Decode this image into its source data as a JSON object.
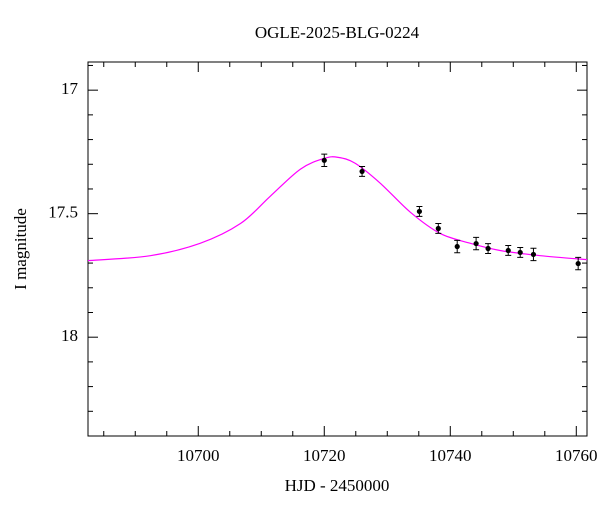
{
  "chart_data": {
    "type": "scatter",
    "title": "OGLE-2025-BLG-0224",
    "x_label": "HJD - 2450000",
    "y_label": "I magnitude",
    "xlim": [
      10682.5,
      10761.7
    ],
    "ylim": [
      18.4,
      16.886
    ],
    "xticks": [
      10700,
      10720,
      10740,
      10760
    ],
    "xminorticks": [
      10685,
      10690,
      10695,
      10705,
      10710,
      10715,
      10725,
      10730,
      10735,
      10745,
      10750,
      10755
    ],
    "yticks": [
      17,
      17.5,
      18
    ],
    "yminorticks": [
      16.9,
      17.1,
      17.2,
      17.3,
      17.4,
      17.6,
      17.7,
      17.8,
      17.9,
      18.1,
      18.2,
      18.3
    ],
    "series": [
      {
        "color": "#ff00ff",
        "x": [
          10682.5,
          10692.4,
          10700.3,
          10706.7,
          10711.4,
          10716.2,
          10720,
          10722.2,
          10724.9,
          10728.9,
          10733.7,
          10738.4,
          10743.2,
          10747.9,
          10754.3,
          10761.7
        ],
        "values": [
          17.69,
          17.67,
          17.62,
          17.54,
          17.43,
          17.32,
          17.276,
          17.272,
          17.296,
          17.377,
          17.495,
          17.58,
          17.62,
          17.649,
          17.67,
          17.686
        ]
      },
      {
        "color": "#000000",
        "x": [
          10720,
          10726,
          10735.1,
          10738.1,
          10741.1,
          10744.1,
          10746,
          10749.2,
          10751.1,
          10753.2,
          10760.3
        ],
        "values": [
          17.284,
          17.329,
          17.491,
          17.56,
          17.633,
          17.621,
          17.641,
          17.649,
          17.657,
          17.665,
          17.702
        ],
        "errors": [
          0.025,
          0.02,
          0.02,
          0.02,
          0.025,
          0.025,
          0.02,
          0.02,
          0.02,
          0.025,
          0.025
        ]
      }
    ]
  }
}
